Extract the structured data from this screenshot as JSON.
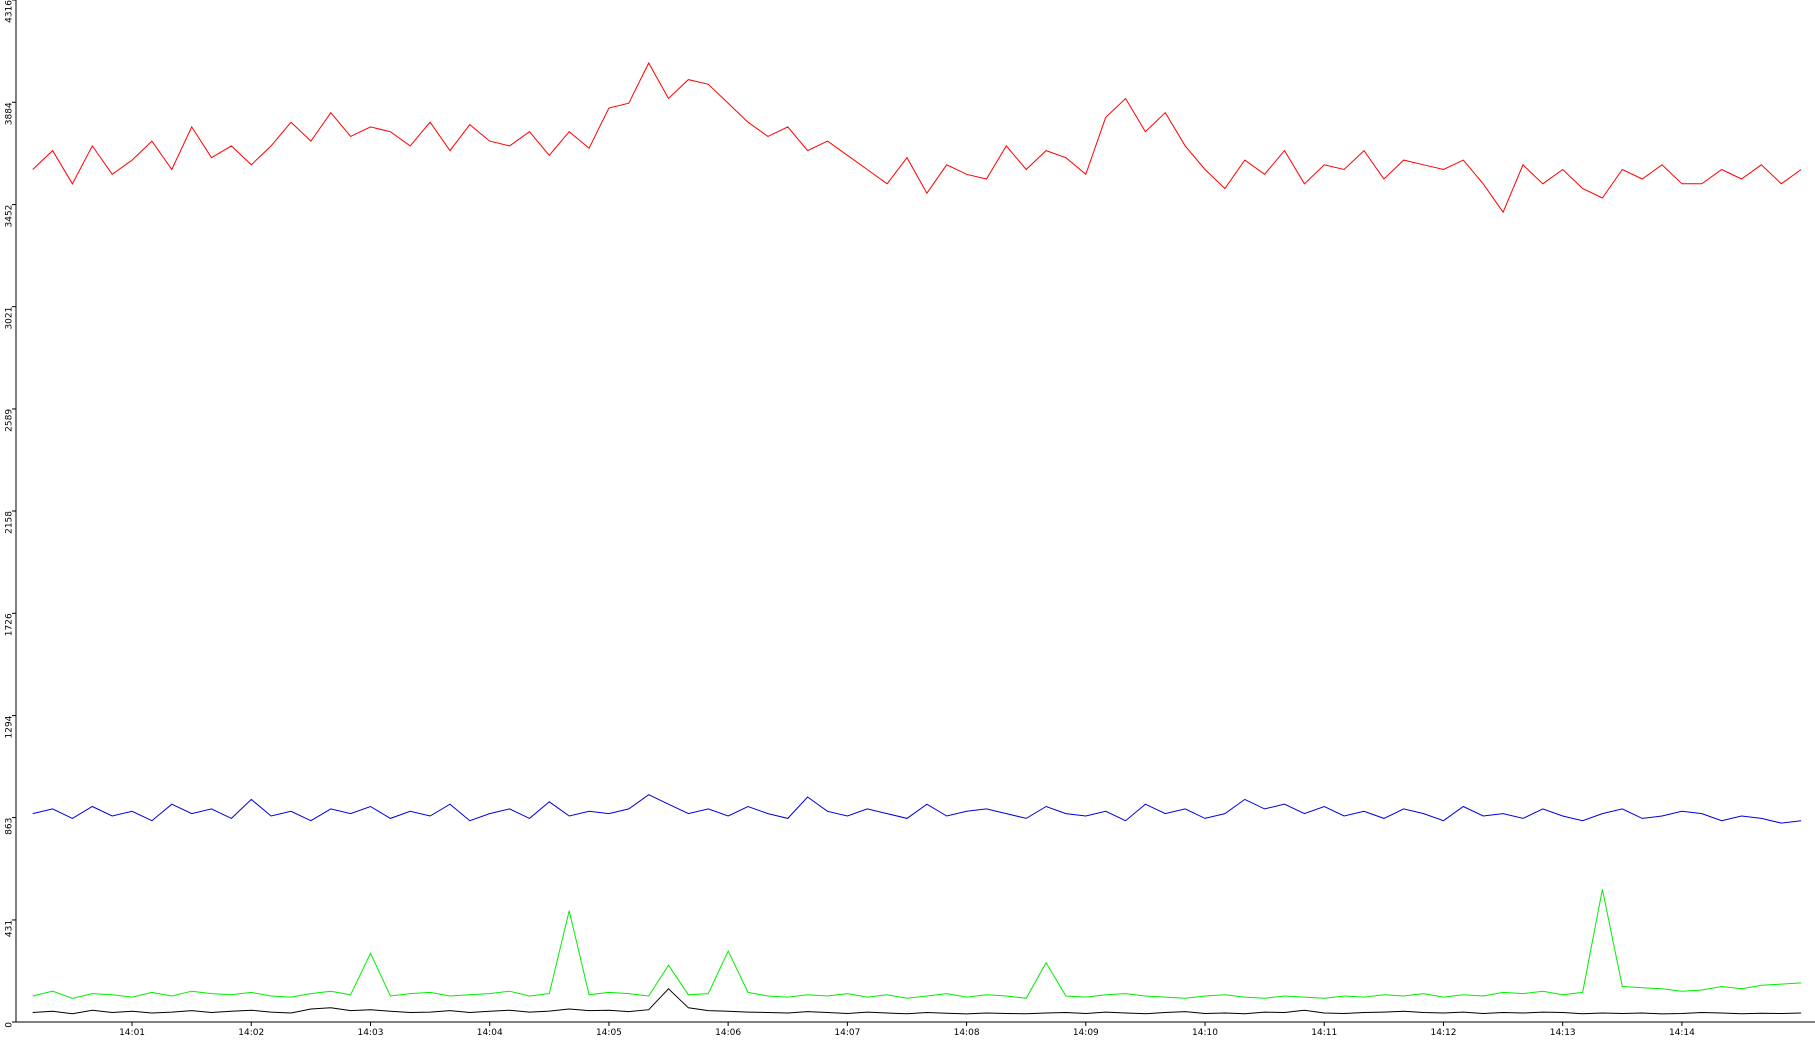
{
  "chart_data": {
    "type": "line",
    "categories": [
      null,
      null,
      null,
      null,
      null,
      "14:01",
      null,
      null,
      null,
      null,
      null,
      "14:02",
      null,
      null,
      null,
      null,
      null,
      "14:03",
      null,
      null,
      null,
      null,
      null,
      "14:04",
      null,
      null,
      null,
      null,
      null,
      "14:05",
      null,
      null,
      null,
      null,
      null,
      "14:06",
      null,
      null,
      null,
      null,
      null,
      "14:07",
      null,
      null,
      null,
      null,
      null,
      "14:08",
      null,
      null,
      null,
      null,
      null,
      "14:09",
      null,
      null,
      null,
      null,
      null,
      "14:10",
      null,
      null,
      null,
      null,
      null,
      "14:11",
      null,
      null,
      null,
      null,
      null,
      "14:12",
      null,
      null,
      null,
      null,
      null,
      "14:13",
      null,
      null,
      null,
      null,
      null,
      "14:14",
      null,
      null,
      null,
      null,
      null,
      null
    ],
    "series": [
      {
        "color": "#ff0000",
        "values": [
          3600,
          3680,
          3540,
          3700,
          3580,
          3640,
          3720,
          3600,
          3780,
          3650,
          3700,
          3620,
          3700,
          3800,
          3720,
          3840,
          3740,
          3780,
          3760,
          3700,
          3800,
          3680,
          3790,
          3720,
          3700,
          3760,
          3660,
          3760,
          3690,
          3860,
          3880,
          4050,
          3900,
          3980,
          3960,
          3880,
          3800,
          3740,
          3780,
          3680,
          3720,
          3660,
          3600,
          3540,
          3650,
          3500,
          3620,
          3580,
          3560,
          3700,
          3600,
          3680,
          3650,
          3580,
          3820,
          3900,
          3760,
          3840,
          3700,
          3600,
          3520,
          3640,
          3580,
          3680,
          3540,
          3620,
          3600,
          3680,
          3560,
          3640,
          3620,
          3600,
          3640,
          3540,
          3420,
          3620,
          3540,
          3600,
          3520,
          3480,
          3600,
          3560,
          3620,
          3540,
          3540,
          3600,
          3560,
          3620,
          3540,
          3600
        ]
      },
      {
        "color": "#0000dd",
        "values": [
          880,
          900,
          860,
          910,
          870,
          890,
          850,
          920,
          880,
          900,
          860,
          940,
          870,
          890,
          850,
          900,
          880,
          910,
          860,
          890,
          870,
          920,
          850,
          880,
          900,
          860,
          930,
          870,
          890,
          880,
          900,
          960,
          920,
          880,
          900,
          870,
          910,
          880,
          860,
          950,
          890,
          870,
          900,
          880,
          860,
          920,
          870,
          890,
          900,
          880,
          860,
          910,
          880,
          870,
          890,
          850,
          920,
          880,
          900,
          860,
          880,
          940,
          900,
          920,
          880,
          910,
          870,
          890,
          860,
          900,
          880,
          850,
          910,
          870,
          880,
          860,
          900,
          870,
          850,
          880,
          900,
          860,
          870,
          890,
          880,
          850,
          870,
          860,
          840,
          850
        ]
      },
      {
        "color": "#00ee00",
        "values": [
          110,
          130,
          100,
          120,
          115,
          105,
          125,
          110,
          130,
          120,
          115,
          125,
          110,
          105,
          120,
          130,
          115,
          290,
          110,
          120,
          125,
          110,
          115,
          120,
          130,
          110,
          120,
          470,
          115,
          125,
          120,
          110,
          240,
          115,
          120,
          300,
          125,
          110,
          105,
          115,
          110,
          120,
          105,
          115,
          100,
          110,
          120,
          105,
          115,
          110,
          100,
          250,
          110,
          105,
          115,
          120,
          110,
          105,
          100,
          110,
          115,
          105,
          100,
          110,
          105,
          100,
          110,
          105,
          115,
          110,
          120,
          105,
          115,
          110,
          125,
          120,
          130,
          115,
          125,
          560,
          150,
          145,
          140,
          130,
          135,
          150,
          140,
          155,
          160,
          165
        ]
      },
      {
        "color": "#000000",
        "values": [
          40,
          45,
          35,
          50,
          40,
          45,
          38,
          42,
          48,
          40,
          45,
          50,
          42,
          38,
          55,
          60,
          48,
          52,
          45,
          40,
          42,
          48,
          40,
          45,
          50,
          42,
          46,
          55,
          48,
          50,
          44,
          52,
          140,
          60,
          48,
          45,
          42,
          40,
          38,
          44,
          40,
          36,
          42,
          38,
          35,
          40,
          37,
          34,
          38,
          36,
          35,
          38,
          40,
          36,
          42,
          38,
          35,
          40,
          44,
          36,
          38,
          35,
          42,
          40,
          50,
          38,
          36,
          40,
          42,
          45,
          40,
          38,
          42,
          36,
          40,
          38,
          42,
          40,
          35,
          38,
          36,
          38,
          34,
          36,
          40,
          38,
          35,
          37,
          36,
          38
        ]
      }
    ],
    "ylim": [
      0,
      4316
    ],
    "yticks": [
      0,
      431,
      863,
      1294,
      1726,
      2158,
      2589,
      3021,
      3452,
      3884,
      4316
    ]
  }
}
